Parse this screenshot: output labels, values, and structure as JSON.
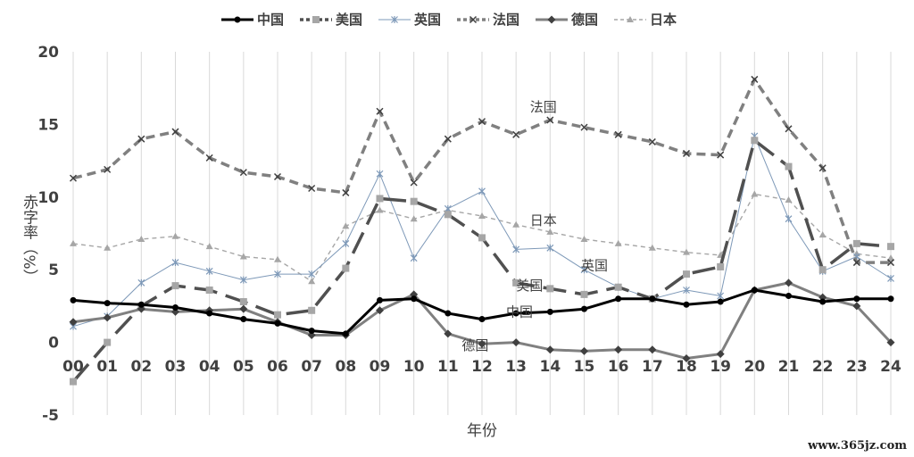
{
  "chart_data": {
    "type": "line",
    "xlabel": "年份",
    "ylabel": "赤字率（%）",
    "ylim": [
      -5,
      20
    ],
    "yticks": [
      -5,
      0,
      5,
      10,
      15,
      20
    ],
    "grid": "vertical",
    "legend_position": "top",
    "categories": [
      "00",
      "01",
      "02",
      "03",
      "04",
      "05",
      "06",
      "07",
      "08",
      "09",
      "10",
      "11",
      "12",
      "13",
      "14",
      "15",
      "16",
      "17",
      "18",
      "19",
      "20",
      "21",
      "22",
      "23",
      "24"
    ],
    "series": [
      {
        "name": "中国",
        "key": "cn",
        "color": "#000000",
        "style": "solid",
        "marker": "circle",
        "values": [
          2.9,
          2.7,
          2.6,
          2.4,
          2.0,
          1.6,
          1.3,
          0.8,
          0.6,
          2.9,
          3.0,
          2.0,
          1.6,
          2.0,
          2.1,
          2.3,
          3.0,
          3.0,
          2.6,
          2.8,
          3.6,
          3.2,
          2.8,
          3.0,
          3.0
        ]
      },
      {
        "name": "美国",
        "key": "us",
        "color": "#505050",
        "style": "longdash",
        "marker": "square",
        "values": [
          -2.7,
          0.0,
          2.5,
          3.9,
          3.6,
          2.8,
          1.9,
          2.2,
          5.1,
          9.9,
          9.7,
          8.8,
          7.2,
          4.1,
          3.7,
          3.3,
          3.8,
          3.0,
          4.7,
          5.2,
          13.9,
          12.1,
          5.0,
          6.8,
          6.6
        ]
      },
      {
        "name": "英国",
        "key": "uk",
        "color": "#7e99b8",
        "style": "thin",
        "marker": "asterisk",
        "values": [
          1.1,
          1.8,
          4.1,
          5.5,
          4.9,
          4.3,
          4.7,
          4.7,
          6.8,
          11.6,
          5.8,
          9.2,
          10.4,
          6.4,
          6.5,
          5.0,
          3.8,
          3.0,
          3.6,
          3.2,
          14.2,
          8.5,
          4.9,
          5.9,
          4.4
        ]
      },
      {
        "name": "法国",
        "key": "fr",
        "color": "#808080",
        "style": "dash",
        "marker": "x",
        "values": [
          11.3,
          11.9,
          14.0,
          14.5,
          12.7,
          11.7,
          11.4,
          10.6,
          10.3,
          15.9,
          11.0,
          14.0,
          15.2,
          14.3,
          15.3,
          14.8,
          14.3,
          13.8,
          13.0,
          12.9,
          18.1,
          14.7,
          12.0,
          5.5,
          5.5
        ]
      },
      {
        "name": "德国",
        "key": "de",
        "color": "#808080",
        "style": "solid",
        "marker": "diamond",
        "values": [
          1.4,
          1.7,
          2.3,
          2.1,
          2.2,
          2.3,
          1.4,
          0.5,
          0.5,
          2.2,
          3.3,
          0.6,
          -0.1,
          0.0,
          -0.5,
          -0.6,
          -0.5,
          -0.5,
          -1.1,
          -0.8,
          3.6,
          4.1,
          3.1,
          2.5,
          0.0
        ]
      },
      {
        "name": "日本",
        "key": "jp",
        "color": "#a6a6a6",
        "style": "shortdash",
        "marker": "triangle",
        "values": [
          6.8,
          6.5,
          7.1,
          7.3,
          6.6,
          5.9,
          5.7,
          4.2,
          8.0,
          9.1,
          8.5,
          9.1,
          8.7,
          8.1,
          7.6,
          7.1,
          6.8,
          6.5,
          6.2,
          6.0,
          10.2,
          9.8,
          7.4,
          6.1,
          5.8
        ]
      }
    ],
    "annotations": [
      {
        "text": "法国",
        "x": 13.8,
        "y": 16.2
      },
      {
        "text": "日本",
        "x": 13.8,
        "y": 8.4
      },
      {
        "text": "英国",
        "x": 15.3,
        "y": 5.3
      },
      {
        "text": "美国",
        "x": 13.4,
        "y": 3.9
      },
      {
        "text": "中国",
        "x": 13.1,
        "y": 2.1
      },
      {
        "text": "德国",
        "x": 11.8,
        "y": -0.2
      }
    ]
  },
  "watermark": "www.365jz.com"
}
